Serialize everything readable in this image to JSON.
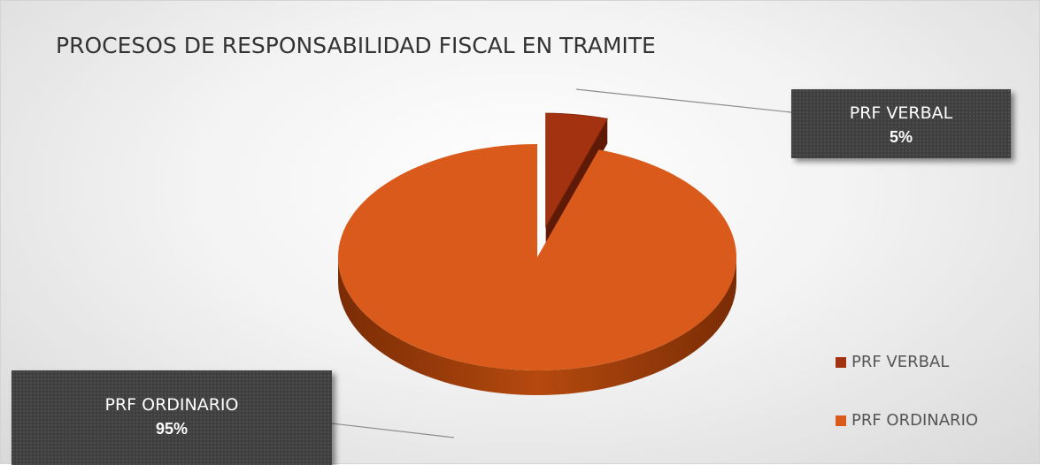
{
  "chart_data": {
    "type": "pie",
    "title": "PROCESOS DE RESPONSABILIDAD FISCAL EN TRAMITE",
    "categories": [
      "PRF VERBAL",
      "PRF ORDINARIO"
    ],
    "values": [
      5,
      95
    ],
    "value_labels": [
      "5%",
      "95%"
    ],
    "colors": [
      "#a33211",
      "#d95a1a"
    ],
    "exploded": [
      "PRF VERBAL"
    ],
    "style": "3d",
    "legend": {
      "position": "bottom-right",
      "entries": [
        "PRF VERBAL",
        "PRF ORDINARIO"
      ]
    }
  }
}
